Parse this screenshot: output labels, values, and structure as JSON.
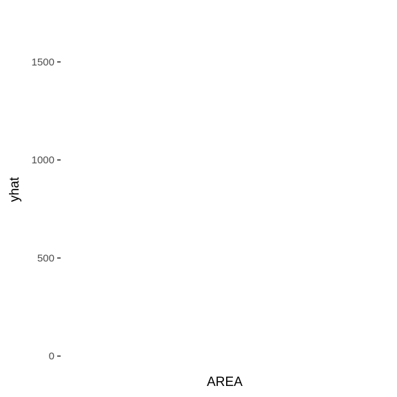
{
  "chart_data": {
    "type": "scatter",
    "title": "",
    "xlabel": "AREA",
    "ylabel": "yhat",
    "ylim": [
      -40,
      1640
    ],
    "yticks": [
      {
        "value": 0,
        "label": "0"
      },
      {
        "value": 500,
        "label": "500"
      },
      {
        "value": 1000,
        "label": "1000"
      },
      {
        "value": 1500,
        "label": "1500"
      }
    ],
    "xticks": [],
    "series": [],
    "grid": false,
    "legend": "none"
  }
}
